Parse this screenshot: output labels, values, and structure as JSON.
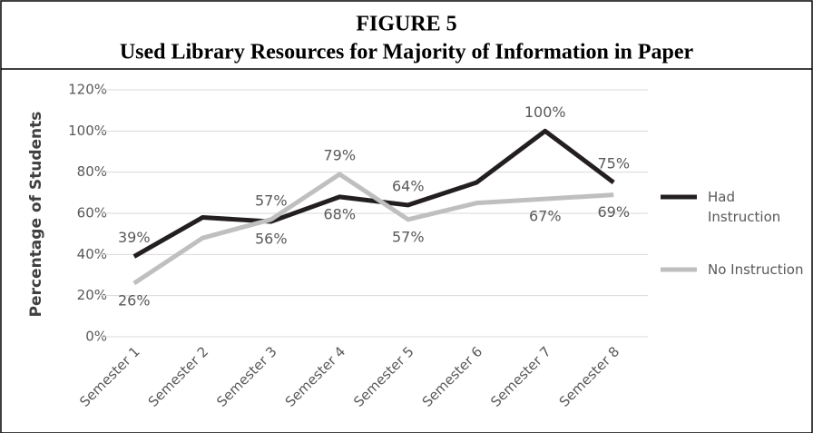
{
  "chart_data": {
    "type": "line",
    "title": "FIGURE 5",
    "subtitle": "Used Library Resources for Majority of Information in Paper",
    "y_label": "Percentage of Students",
    "categories": [
      "Semester 1",
      "Semester 2",
      "Semester 3",
      "Semester 4",
      "Semester 5",
      "Semester 6",
      "Semester 7",
      "Semester 8"
    ],
    "series": [
      {
        "name": "Had Instruction",
        "color": "#231f20",
        "values": [
          39,
          58,
          56,
          68,
          64,
          75,
          100,
          75
        ],
        "value_labels": [
          "39%",
          null,
          "56%",
          "68%",
          "64%",
          null,
          "100%",
          "75%"
        ]
      },
      {
        "name": "No Instruction",
        "color": "#bfbfbf",
        "values": [
          26,
          48,
          57,
          79,
          57,
          65,
          67,
          69
        ],
        "value_labels": [
          "26%",
          null,
          "57%",
          "79%",
          "57%",
          null,
          "67%",
          "69%"
        ]
      }
    ],
    "ylim": [
      0,
      120
    ],
    "yticks": [
      {
        "value": 0,
        "label": "0%"
      },
      {
        "value": 20,
        "label": "20%"
      },
      {
        "value": 40,
        "label": "40%"
      },
      {
        "value": 60,
        "label": "60%"
      },
      {
        "value": 80,
        "label": "80%"
      },
      {
        "value": 100,
        "label": "100%"
      },
      {
        "value": 120,
        "label": "120%"
      }
    ],
    "grid": true,
    "legend": "right"
  }
}
